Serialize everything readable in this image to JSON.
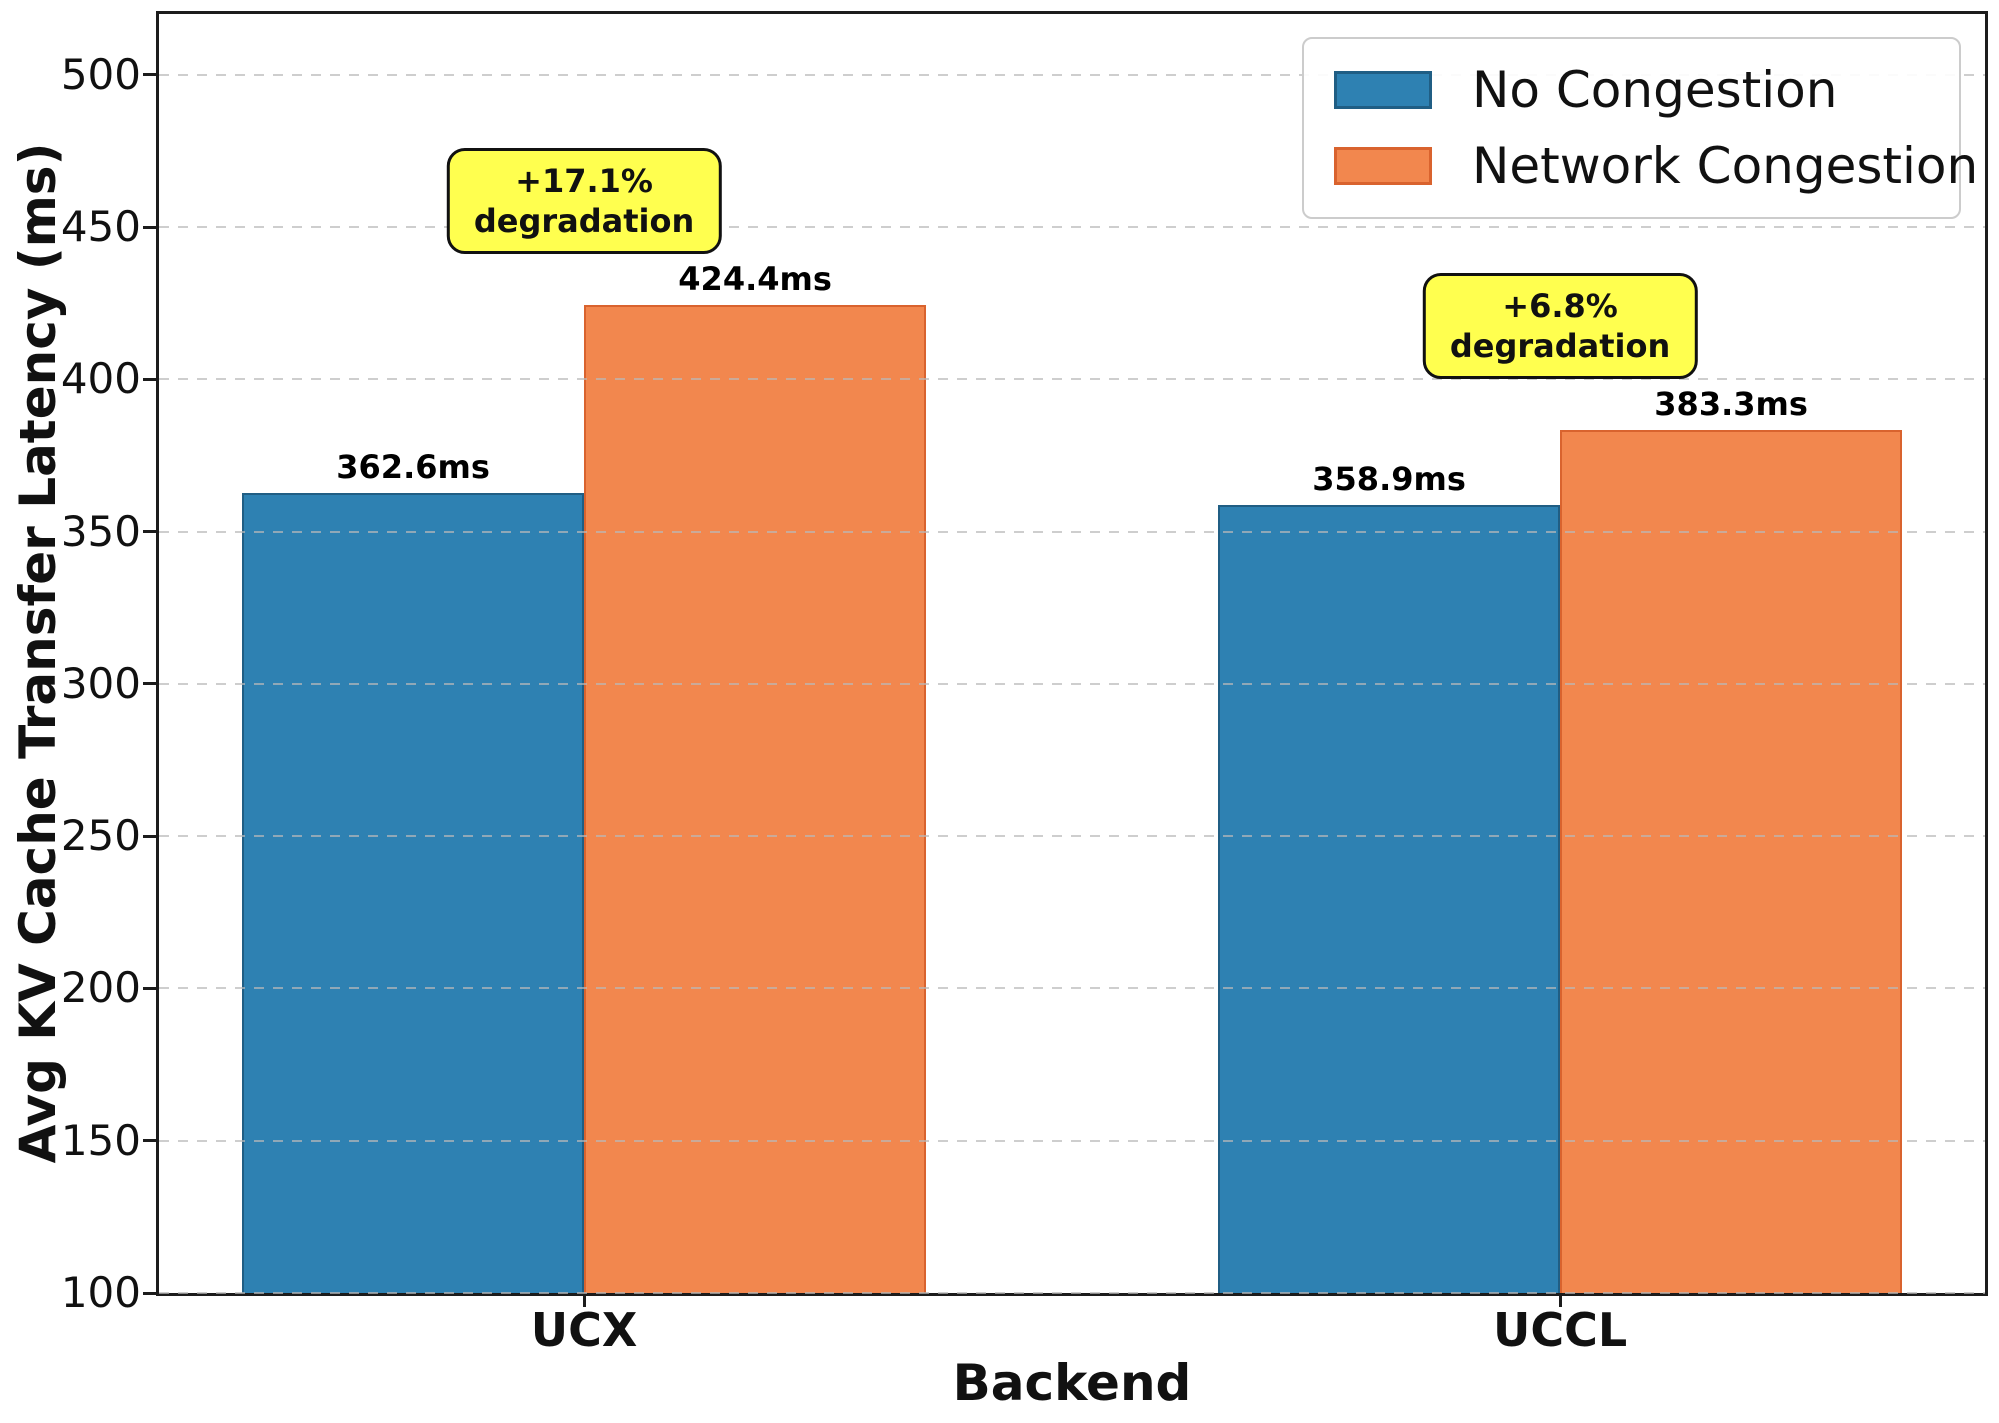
{
  "chart_data": {
    "type": "bar",
    "xlabel": "Backend",
    "ylabel": "Avg KV Cache Transfer Latency (ms)",
    "categories": [
      "UCX",
      "UCCL"
    ],
    "series": [
      {
        "name": "No Congestion",
        "color": "#2E81B2",
        "edge_color": "#205E84",
        "values": [
          362.6,
          358.9
        ]
      },
      {
        "name": "Network Congestion",
        "color": "#F2874E",
        "edge_color": "#D9632E",
        "values": [
          424.4,
          383.3
        ]
      }
    ],
    "value_labels": [
      [
        "362.6ms",
        "358.9ms"
      ],
      [
        "424.4ms",
        "383.3ms"
      ]
    ],
    "annotations": [
      {
        "category": "UCX",
        "line1": "+17.1%",
        "line2": "degradation"
      },
      {
        "category": "UCCL",
        "line1": "+6.8%",
        "line2": "degradation"
      }
    ],
    "ylim": [
      100,
      520
    ],
    "yticks": [
      100,
      150,
      200,
      250,
      300,
      350,
      400,
      450,
      500
    ],
    "grid": "horizontal dashed",
    "legend_position": "upper right",
    "colors": {
      "annotation_bg": "#FFFF4F",
      "annotation_border": "#111111",
      "axis": "#1c1c1c"
    }
  }
}
